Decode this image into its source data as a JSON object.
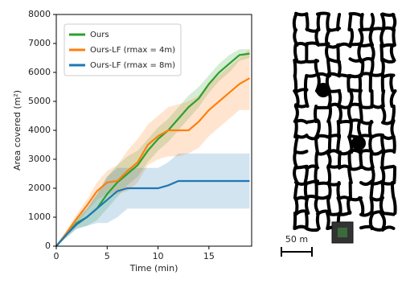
{
  "chart_data": {
    "type": "line",
    "x_label": "Time (min)",
    "y_label": "Area covered (m²)",
    "x": [
      0,
      1,
      2,
      3,
      4,
      5,
      6,
      7,
      8,
      9,
      10,
      11,
      12,
      13,
      14,
      15,
      16,
      17,
      18,
      19
    ],
    "xlim": [
      0,
      19.2
    ],
    "xticks": [
      0,
      5,
      10,
      15
    ],
    "ylim": [
      0,
      8000
    ],
    "yticks": [
      0,
      1000,
      2000,
      3000,
      4000,
      5000,
      6000,
      7000,
      8000
    ],
    "legend": "upper left",
    "series": [
      {
        "name": "Ours",
        "color": "#2ca02c",
        "values": [
          0,
          400,
          800,
          1000,
          1300,
          1800,
          2200,
          2500,
          2800,
          3300,
          3700,
          4000,
          4400,
          4800,
          5100,
          5600,
          6000,
          6300,
          6600,
          6650
        ],
        "lower": [
          0,
          300,
          600,
          700,
          900,
          1300,
          1700,
          2100,
          2400,
          2900,
          3300,
          3600,
          4000,
          4400,
          4800,
          5300,
          5700,
          6000,
          6400,
          6500
        ],
        "upper": [
          0,
          500,
          1000,
          1300,
          1800,
          2400,
          2800,
          3100,
          3300,
          3700,
          4100,
          4400,
          4800,
          5200,
          5500,
          5900,
          6300,
          6600,
          6800,
          6800
        ]
      },
      {
        "name": "Ours-LF (rmax = 4m)",
        "color": "#ff7f0e",
        "values": [
          0,
          450,
          950,
          1400,
          1900,
          2200,
          2250,
          2600,
          2900,
          3500,
          3800,
          4000,
          4000,
          4000,
          4300,
          4700,
          5000,
          5300,
          5600,
          5800
        ],
        "lower": [
          0,
          350,
          800,
          1200,
          1600,
          1800,
          1800,
          1900,
          2200,
          2800,
          3000,
          3100,
          3100,
          3200,
          3400,
          3800,
          4100,
          4400,
          4700,
          4700
        ],
        "upper": [
          0,
          550,
          1100,
          1600,
          2200,
          2600,
          2800,
          3300,
          3700,
          4200,
          4500,
          4800,
          4900,
          5000,
          5200,
          5600,
          5900,
          6200,
          6500,
          6800
        ]
      },
      {
        "name": "Ours-LF (rmax = 8m)",
        "color": "#1f77b4",
        "values": [
          0,
          400,
          750,
          1000,
          1300,
          1600,
          1900,
          2000,
          2000,
          2000,
          2000,
          2100,
          2250,
          2250,
          2250,
          2250,
          2250,
          2250,
          2250,
          2250
        ],
        "lower": [
          0,
          300,
          600,
          700,
          800,
          800,
          1000,
          1300,
          1300,
          1300,
          1300,
          1300,
          1300,
          1300,
          1300,
          1300,
          1300,
          1300,
          1300,
          1300
        ],
        "upper": [
          0,
          500,
          900,
          1300,
          1800,
          2400,
          2700,
          2700,
          2700,
          2700,
          2700,
          2900,
          3200,
          3200,
          3200,
          3200,
          3200,
          3200,
          3200,
          3200
        ]
      }
    ]
  },
  "map": {
    "scale_label": "50 m"
  }
}
